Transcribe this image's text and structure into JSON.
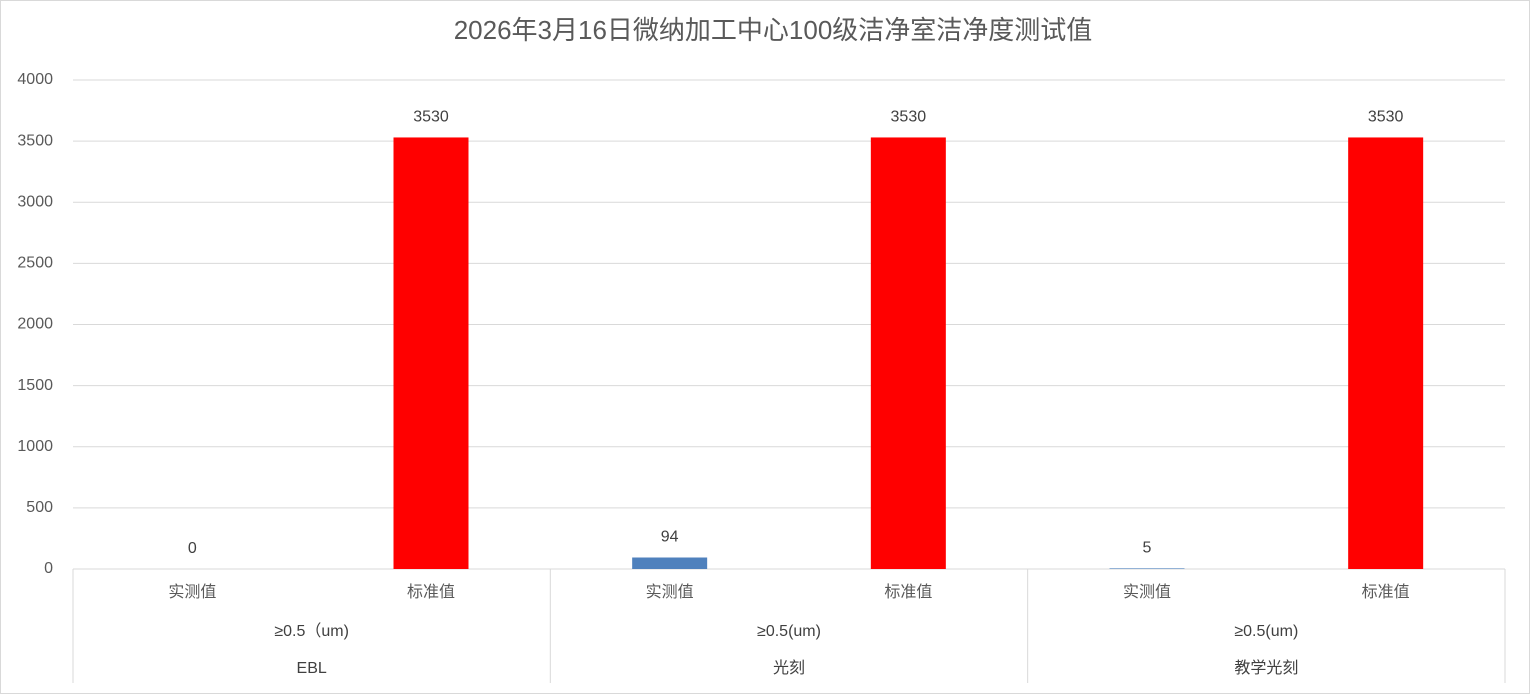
{
  "chart_data": {
    "type": "bar",
    "title": "2026年3月16日微纳加工中心100级洁净室洁净度测试值",
    "categories": [
      "实测值",
      "标准值",
      "实测值",
      "标准值",
      "实测值",
      "标准值"
    ],
    "sub_groups": [
      "≥0.5（um)",
      "≥0.5(um)",
      "≥0.5(um)"
    ],
    "groups": [
      "EBL",
      "光刻",
      "教学光刻"
    ],
    "values": [
      0,
      3530,
      94,
      3530,
      5,
      3530
    ],
    "colors": [
      "#4f81bd",
      "#ff0000",
      "#4f81bd",
      "#ff0000",
      "#4f81bd",
      "#ff0000"
    ],
    "ylim": [
      0,
      4000
    ],
    "yticks": [
      0,
      500,
      1000,
      1500,
      2000,
      2500,
      3000,
      3500,
      4000
    ],
    "grid": true
  }
}
